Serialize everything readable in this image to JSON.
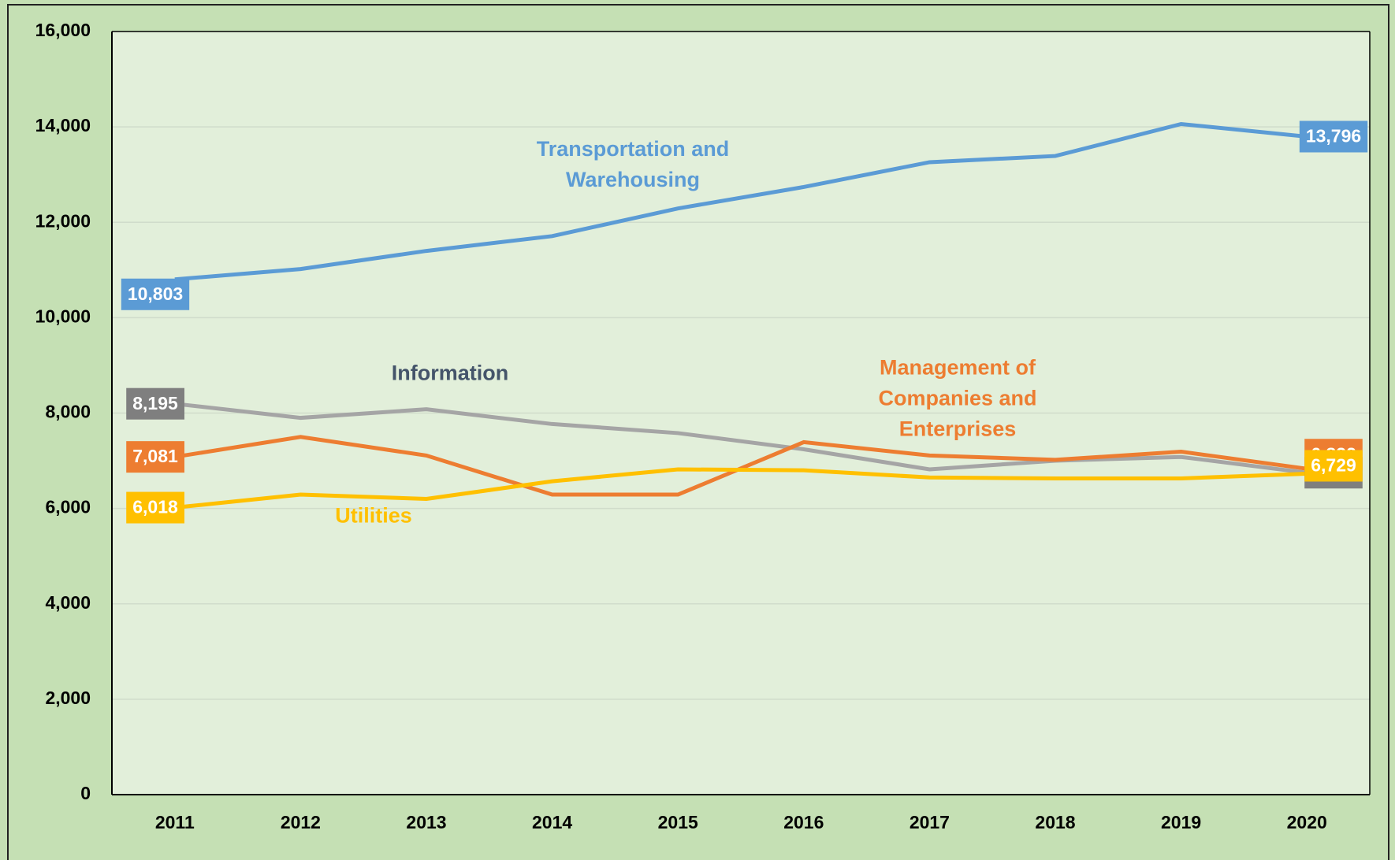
{
  "chart_data": {
    "type": "line",
    "categories": [
      "2011",
      "2012",
      "2013",
      "2014",
      "2015",
      "2016",
      "2017",
      "2018",
      "2019",
      "2020"
    ],
    "series": [
      {
        "name": "Transportation and Warehousing",
        "color": "#5b9bd5",
        "values": [
          10803,
          11020,
          11400,
          11710,
          12290,
          12740,
          13260,
          13390,
          14060,
          13796
        ],
        "value_labels": [
          "10,803",
          null,
          null,
          null,
          null,
          null,
          null,
          null,
          null,
          "13,796"
        ]
      },
      {
        "name": "Information",
        "color": "#a5a5a5",
        "values": [
          8195,
          7900,
          8080,
          7770,
          7580,
          7240,
          6820,
          7000,
          7080,
          6749
        ],
        "value_labels": [
          "8,195",
          null,
          null,
          null,
          null,
          null,
          null,
          null,
          null,
          "6,749"
        ]
      },
      {
        "name": "Management of Companies and Enterprises",
        "color": "#ed7d31",
        "values": [
          7081,
          7500,
          7110,
          6290,
          6290,
          7390,
          7110,
          7020,
          7190,
          6832
        ],
        "value_labels": [
          "7,081",
          null,
          null,
          null,
          null,
          null,
          null,
          null,
          null,
          "6,832"
        ]
      },
      {
        "name": "Utilities",
        "color": "#ffc000",
        "values": [
          6018,
          6290,
          6200,
          6570,
          6820,
          6800,
          6650,
          6630,
          6630,
          6729
        ],
        "value_labels": [
          "6,018",
          null,
          null,
          null,
          null,
          null,
          null,
          null,
          null,
          "6,729"
        ]
      }
    ],
    "ylim": [
      0,
      16000
    ],
    "yticks": [
      0,
      {
        "value": 2000,
        "label": "2,000"
      },
      {
        "value": 4000,
        "label": "4,000"
      },
      {
        "value": 6000,
        "label": "6,000"
      },
      {
        "value": 8000,
        "label": "8,000"
      },
      {
        "value": 10000,
        "label": "10,000"
      },
      {
        "value": 12000,
        "label": "12,000"
      },
      {
        "value": 14000,
        "label": "14,000"
      },
      {
        "value": 16000,
        "label": "16,000"
      }
    ],
    "grid": true
  }
}
